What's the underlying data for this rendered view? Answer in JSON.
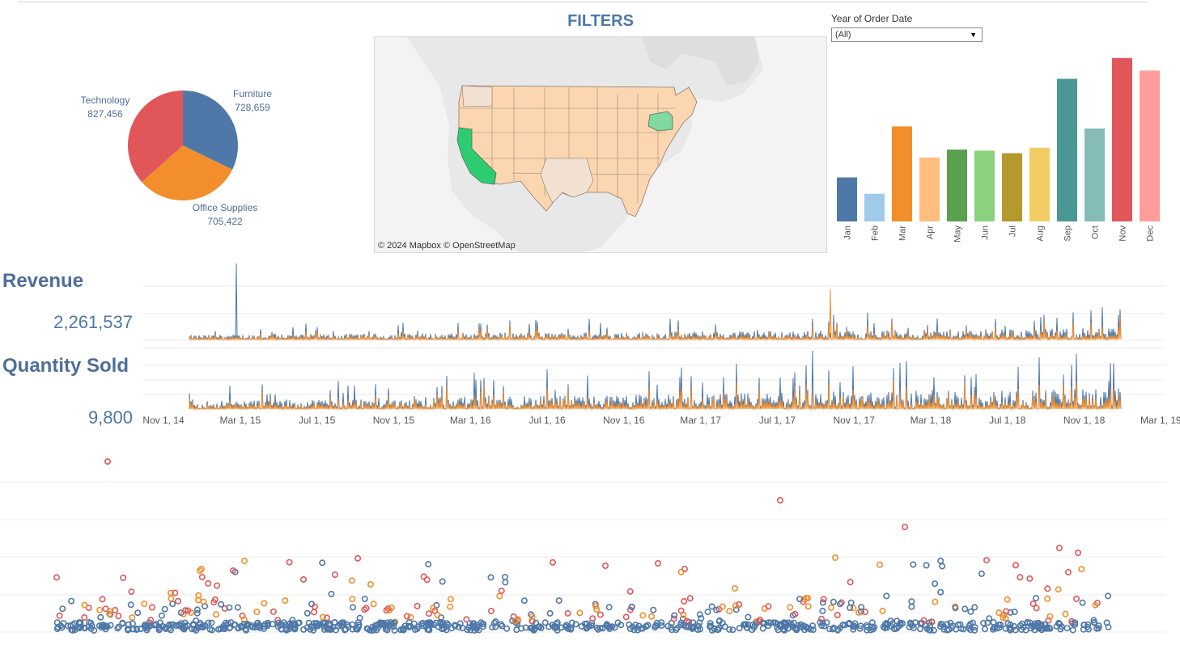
{
  "filters_title": "FILTERS",
  "year_filter": {
    "label": "Year of Order Date",
    "selected": "(All)"
  },
  "map": {
    "attribution": "© 2024 Mapbox © OpenStreetMap"
  },
  "pie": {
    "slices": [
      {
        "name": "Furniture",
        "value": "728,659",
        "amount": 728659,
        "color": "#4e78a8"
      },
      {
        "name": "Office Supplies",
        "value": "705,422",
        "amount": 705422,
        "color": "#f28e2b"
      },
      {
        "name": "Technology",
        "value": "827,456",
        "amount": 827456,
        "color": "#e15759"
      }
    ]
  },
  "kpis": {
    "revenue": {
      "title": "Revenue",
      "value": "2,261,537"
    },
    "quantity": {
      "title": "Quantity Sold",
      "value": "9,800"
    }
  },
  "date_axis": [
    "Nov 1, 14",
    "Mar 1, 15",
    "Jul 1, 15",
    "Nov 1, 15",
    "Mar 1, 16",
    "Jul 1, 16",
    "Nov 1, 16",
    "Mar 1, 17",
    "Jul 1, 17",
    "Nov 1, 17",
    "Mar 1, 18",
    "Jul 1, 18",
    "Nov 1, 18",
    "Mar 1, 19"
  ],
  "chart_data": [
    {
      "type": "bar",
      "categories": [
        "Jan",
        "Feb",
        "Mar",
        "Apr",
        "May",
        "Jun",
        "Jul",
        "Aug",
        "Sep",
        "Oct",
        "Nov",
        "Dec"
      ],
      "values": [
        94924,
        59751,
        205005,
        137762,
        155028,
        152718,
        147238,
        159044,
        307649,
        200323,
        352461,
        325293
      ],
      "colors": [
        "#4e78a8",
        "#a0cbe8",
        "#f28e2b",
        "#ffbe7d",
        "#59a14f",
        "#8cd17d",
        "#b6992d",
        "#f1ce63",
        "#499894",
        "#86bcb6",
        "#e15759",
        "#ff9d9a"
      ],
      "ylim": [
        0,
        380000
      ],
      "grid": false
    },
    {
      "type": "pie",
      "categories": [
        "Furniture",
        "Office Supplies",
        "Technology"
      ],
      "values": [
        728659,
        705422,
        827456
      ]
    }
  ]
}
